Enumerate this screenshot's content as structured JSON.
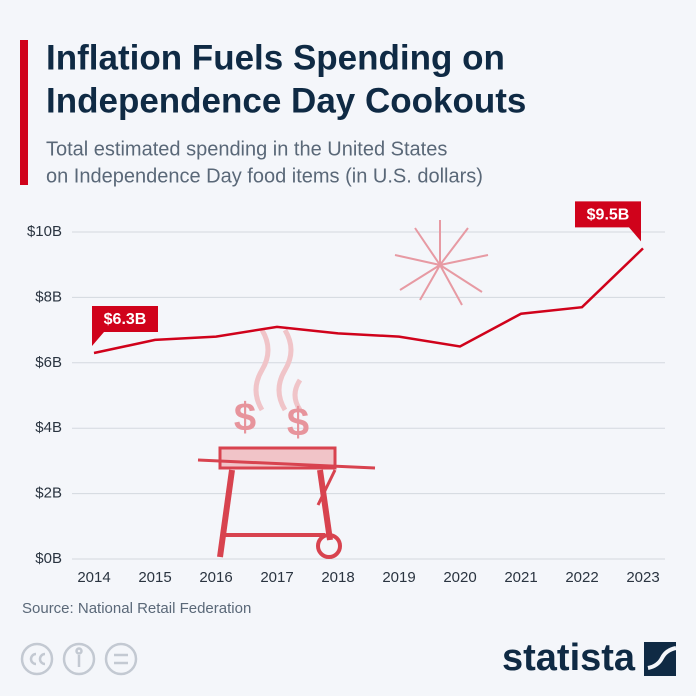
{
  "chart_data": {
    "type": "line",
    "title": [
      "Inflation Fuels Spending on",
      "Independence Day Cookouts"
    ],
    "subtitle": [
      "Total estimated spending in the United States",
      "on Independence Day food items (in U.S. dollars)"
    ],
    "categories": [
      "2014",
      "2015",
      "2016",
      "2017",
      "2018",
      "2019",
      "2020",
      "2021",
      "2022",
      "2023"
    ],
    "values": [
      6.3,
      6.7,
      6.8,
      7.1,
      6.9,
      6.8,
      6.5,
      7.5,
      7.7,
      9.5
    ],
    "value_labels": [
      "$6.3B",
      null,
      null,
      null,
      null,
      null,
      null,
      null,
      null,
      "$9.5B"
    ],
    "color": "#d0021b",
    "ylim": [
      0,
      10
    ],
    "yticks": [
      {
        "value": 0,
        "label": "$0B"
      },
      {
        "value": 2,
        "label": "$2B"
      },
      {
        "value": 4,
        "label": "$4B"
      },
      {
        "value": 6,
        "label": "$6B"
      },
      {
        "value": 8,
        "label": "$8B"
      },
      {
        "value": 10,
        "label": "$10B"
      }
    ],
    "grid": true,
    "source": "Source: National Retail Federation",
    "brand": "statista"
  }
}
